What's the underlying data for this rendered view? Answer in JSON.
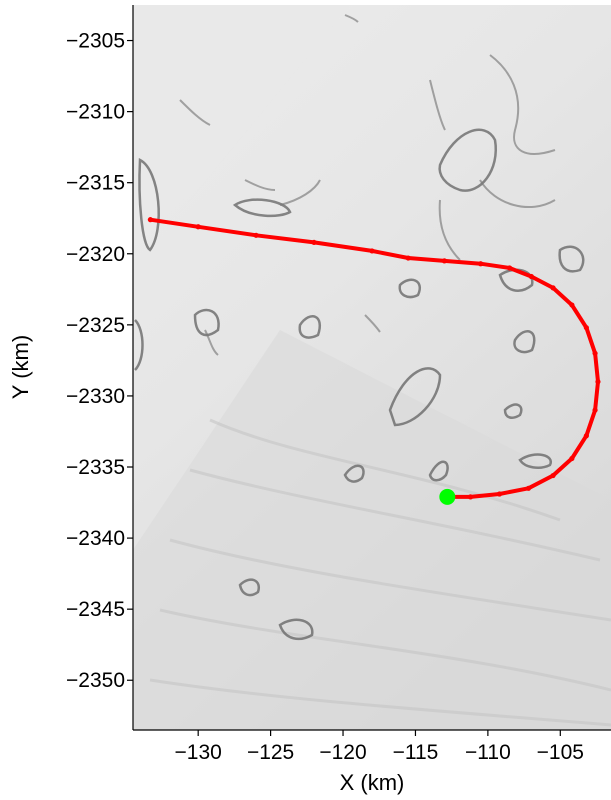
{
  "chart_data": {
    "type": "line",
    "title": "",
    "xlabel": "X (km)",
    "ylabel": "Y (km)",
    "xlim": [
      -134.5,
      -101.5
    ],
    "ylim": [
      -2353.5,
      -2302.5
    ],
    "x_ticks": [
      -130,
      -125,
      -120,
      -115,
      -110,
      -105
    ],
    "y_ticks": [
      -2305,
      -2310,
      -2315,
      -2320,
      -2325,
      -2330,
      -2335,
      -2340,
      -2345,
      -2350
    ],
    "x_tick_labels": [
      "−130",
      "−125",
      "−120",
      "−115",
      "−110",
      "−105"
    ],
    "y_tick_labels": [
      "−2305",
      "−2310",
      "−2315",
      "−2320",
      "−2325",
      "−2330",
      "−2335",
      "−2340",
      "−2345",
      "−2350"
    ],
    "grid": false,
    "background": "grayscale satellite imagery of ice surface",
    "track": {
      "color": "#ff0000",
      "x": [
        -133.3,
        -130,
        -126,
        -122,
        -118,
        -115.5,
        -113,
        -110.5,
        -108.5,
        -107,
        -105.5,
        -104.2,
        -103.2,
        -102.6,
        -102.4,
        -102.6,
        -103.2,
        -104.2,
        -105.5,
        -107.2,
        -109.2,
        -111.2,
        -112.8
      ],
      "y": [
        -2317.6,
        -2318.1,
        -2318.7,
        -2319.2,
        -2319.8,
        -2320.3,
        -2320.5,
        -2320.7,
        -2321.0,
        -2321.6,
        -2322.4,
        -2323.6,
        -2325.2,
        -2327.0,
        -2329.0,
        -2331.0,
        -2332.8,
        -2334.4,
        -2335.6,
        -2336.5,
        -2336.9,
        -2337.1,
        -2337.1
      ]
    },
    "end_marker": {
      "x": -112.8,
      "y": -2337.1,
      "color": "#00ff00"
    }
  }
}
